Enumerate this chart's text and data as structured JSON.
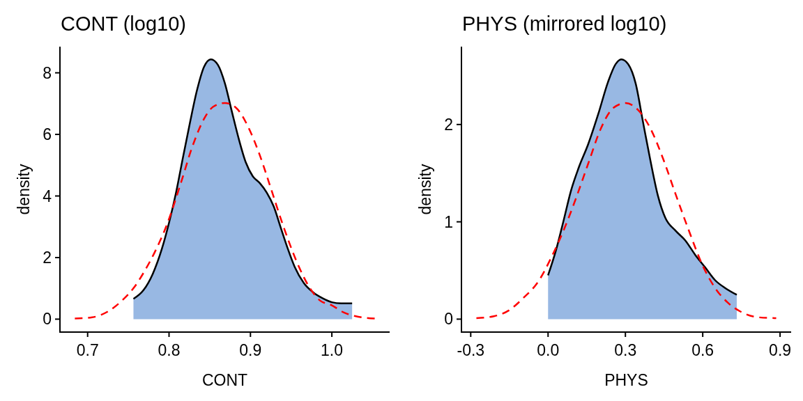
{
  "chart_data": [
    {
      "type": "area",
      "title": "CONT (log10)",
      "xlabel": "CONT",
      "ylabel": "density",
      "xlim": [
        0.666,
        1.071
      ],
      "xticks": [
        0.7,
        0.8,
        0.9,
        {
          "value": 1,
          "label": "1.0"
        }
      ],
      "ylim": [
        -0.42,
        8.85
      ],
      "yticks": [
        0,
        2,
        4,
        6,
        8
      ],
      "series": [
        {
          "color": "#98b8e3",
          "x": [
            0.7563,
            0.7686,
            0.78,
            0.7914,
            0.8,
            0.8086,
            0.8171,
            0.8257,
            0.8343,
            0.8429,
            0.8514,
            0.86,
            0.8686,
            0.8771,
            0.8857,
            0.8943,
            0.9029,
            0.9114,
            0.92,
            0.9286,
            0.9371,
            0.9457,
            0.9543,
            0.9657,
            0.9771,
            0.9886,
            1.0,
            1.0114,
            1.0249
          ],
          "values": [
            0.66,
            0.94,
            1.47,
            2.3,
            3.13,
            4.11,
            5.25,
            6.38,
            7.43,
            8.19,
            8.44,
            8.26,
            7.66,
            6.75,
            5.85,
            5.09,
            4.64,
            4.42,
            4.11,
            3.66,
            2.98,
            2.3,
            1.7,
            1.17,
            0.87,
            0.68,
            0.55,
            0.51,
            0.51
          ]
        },
        {
          "type": "line",
          "color": "#ff0000",
          "line_style": "dashed",
          "x": [
            0.6843,
            0.7057,
            0.7257,
            0.7429,
            0.7571,
            0.7686,
            0.7829,
            0.7971,
            0.8143,
            0.8286,
            0.8429,
            0.8543,
            0.8686,
            0.8829,
            0.8971,
            0.9114,
            0.9257,
            0.94,
            0.9571,
            0.9714,
            0.9857,
            1.0,
            1.0143,
            1.0286,
            1.0528
          ],
          "values": [
            0.02,
            0.06,
            0.26,
            0.62,
            1.03,
            1.5,
            2.2,
            3.05,
            4.4,
            5.6,
            6.5,
            6.9,
            7.02,
            6.85,
            6.25,
            5.33,
            4.2,
            3.05,
            1.85,
            1.08,
            0.6,
            0.45,
            0.22,
            0.1,
            0.02
          ]
        }
      ]
    },
    {
      "type": "area",
      "title": "PHYS (mirrored log10)",
      "xlabel": "PHYS",
      "ylabel": "density",
      "xlim": [
        -0.336,
        0.943
      ],
      "xticks": [
        -0.3,
        {
          "value": 0,
          "label": "0.0"
        },
        0.3,
        0.6,
        0.9
      ],
      "ylim": [
        -0.133,
        2.8
      ],
      "yticks": [
        0,
        1,
        2
      ],
      "series": [
        {
          "color": "#98b8e3",
          "x": [
            0.0,
            0.031,
            0.06,
            0.089,
            0.118,
            0.156,
            0.195,
            0.233,
            0.262,
            0.284,
            0.311,
            0.34,
            0.368,
            0.397,
            0.426,
            0.455,
            0.494,
            0.532,
            0.571,
            0.61,
            0.648,
            0.687,
            0.732
          ],
          "values": [
            0.45,
            0.71,
            1.01,
            1.32,
            1.55,
            1.8,
            2.11,
            2.44,
            2.62,
            2.67,
            2.62,
            2.42,
            2.03,
            1.63,
            1.27,
            1.04,
            0.91,
            0.81,
            0.66,
            0.53,
            0.4,
            0.32,
            0.25
          ]
        },
        {
          "type": "line",
          "color": "#ff0000",
          "line_style": "dashed",
          "x": [
            -0.278,
            -0.21,
            -0.152,
            -0.095,
            -0.037,
            0.012,
            0.06,
            0.108,
            0.156,
            0.205,
            0.253,
            0.301,
            0.349,
            0.397,
            0.446,
            0.494,
            0.542,
            0.6,
            0.648,
            0.697,
            0.745,
            0.812,
            0.885
          ],
          "values": [
            0.01,
            0.03,
            0.09,
            0.22,
            0.39,
            0.63,
            0.91,
            1.24,
            1.6,
            1.96,
            2.17,
            2.22,
            2.15,
            1.96,
            1.65,
            1.29,
            0.94,
            0.55,
            0.32,
            0.17,
            0.08,
            0.02,
            0.01
          ]
        }
      ]
    }
  ]
}
